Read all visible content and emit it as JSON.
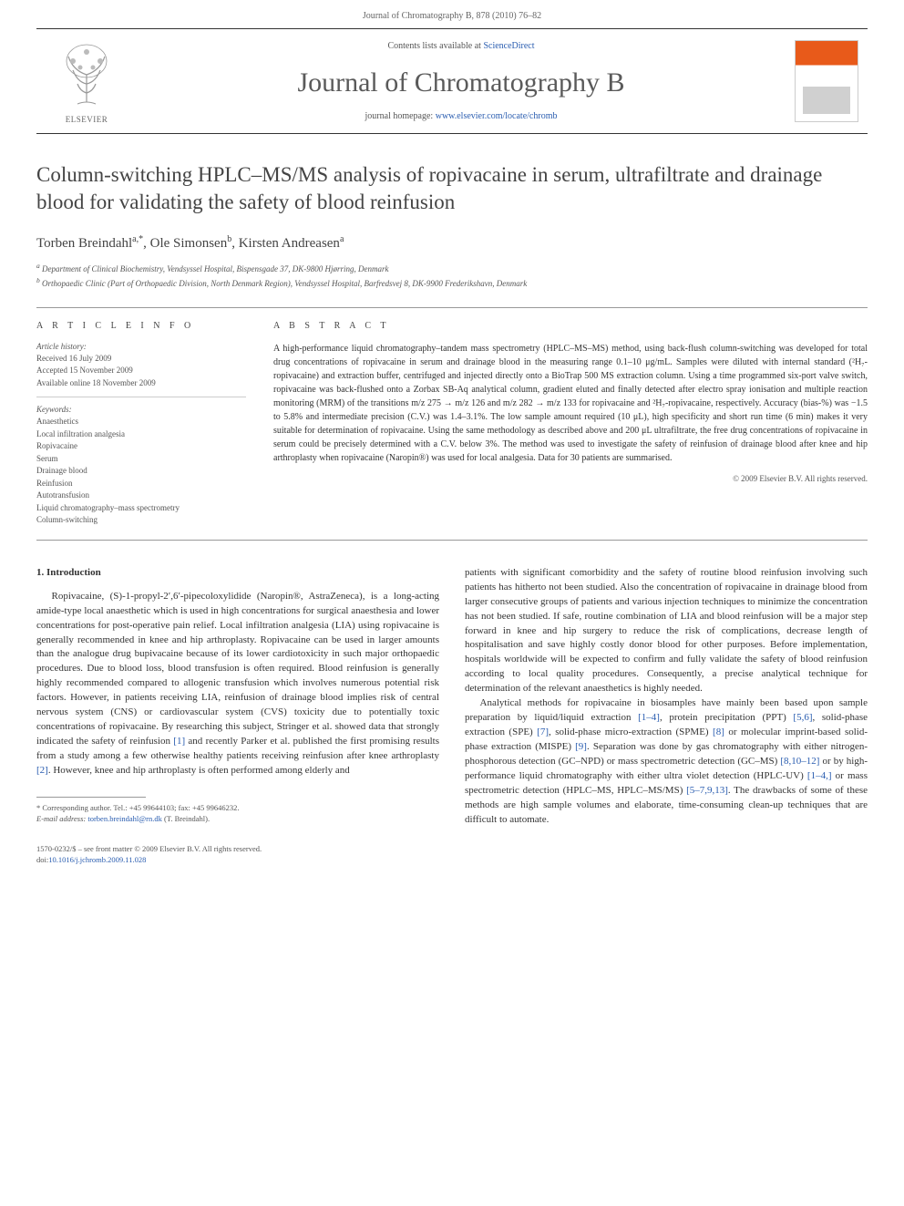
{
  "header": {
    "running_head": "Journal of Chromatography B, 878 (2010) 76–82"
  },
  "masthead": {
    "contents_prefix": "Contents lists available at ",
    "contents_link": "ScienceDirect",
    "journal_name": "Journal of Chromatography B",
    "homepage_prefix": "journal homepage: ",
    "homepage_url": "www.elsevier.com/locate/chromb",
    "publisher": "ELSEVIER"
  },
  "article": {
    "title": "Column-switching HPLC–MS/MS analysis of ropivacaine in serum, ultrafiltrate and drainage blood for validating the safety of blood reinfusion",
    "authors_html": "Torben Breindahl<sup>a,*</sup>, Ole Simonsen<sup>b</sup>, Kirsten Andreasen<sup>a</sup>",
    "affiliations": [
      "a Department of Clinical Biochemistry, Vendsyssel Hospital, Bispensgade 37, DK-9800 Hjørring, Denmark",
      "b Orthopaedic Clinic (Part of Orthopaedic Division, North Denmark Region), Vendsyssel Hospital, Barfredsvej 8, DK-9900 Frederikshavn, Denmark"
    ]
  },
  "info": {
    "heading": "A R T I C L E   I N F O",
    "history_label": "Article history:",
    "history": [
      "Received 16 July 2009",
      "Accepted 15 November 2009",
      "Available online 18 November 2009"
    ],
    "keywords_label": "Keywords:",
    "keywords": [
      "Anaesthetics",
      "Local infiltration analgesia",
      "Ropivacaine",
      "Serum",
      "Drainage blood",
      "Reinfusion",
      "Autotransfusion",
      "Liquid chromatography–mass spectrometry",
      "Column-switching"
    ]
  },
  "abstract": {
    "heading": "A B S T R A C T",
    "text": "A high-performance liquid chromatography–tandem mass spectrometry (HPLC–MS–MS) method, using back-flush column-switching was developed for total drug concentrations of ropivacaine in serum and drainage blood in the measuring range 0.1–10 μg/mL. Samples were diluted with internal standard (²H₇-ropivacaine) and extraction buffer, centrifuged and injected directly onto a BioTrap 500 MS extraction column. Using a time programmed six-port valve switch, ropivacaine was back-flushed onto a Zorbax SB-Aq analytical column, gradient eluted and finally detected after electro spray ionisation and multiple reaction monitoring (MRM) of the transitions m/z 275 → m/z 126 and m/z 282 → m/z 133 for ropivacaine and ²H₇-ropivacaine, respectively. Accuracy (bias-%) was −1.5 to 5.8% and intermediate precision (C.V.) was 1.4–3.1%. The low sample amount required (10 μL), high specificity and short run time (6 min) makes it very suitable for determination of ropivacaine. Using the same methodology as described above and 200 μL ultrafiltrate, the free drug concentrations of ropivacaine in serum could be precisely determined with a C.V. below 3%. The method was used to investigate the safety of reinfusion of drainage blood after knee and hip arthroplasty when ropivacaine (Naropin®) was used for local analgesia. Data for 30 patients are summarised.",
    "copyright": "© 2009 Elsevier B.V. All rights reserved."
  },
  "body": {
    "section_number": "1.",
    "section_title": "Introduction",
    "col1_p1": "Ropivacaine, (S)-1-propyl-2′,6′-pipecoloxylidide (Naropin®, AstraZeneca), is a long-acting amide-type local anaesthetic which is used in high concentrations for surgical anaesthesia and lower concentrations for post-operative pain relief. Local infiltration analgesia (LIA) using ropivacaine is generally recommended in knee and hip arthroplasty. Ropivacaine can be used in larger amounts than the analogue drug bupivacaine because of its lower cardiotoxicity in such major orthopaedic procedures. Due to blood loss, blood transfusion is often required. Blood reinfusion is generally highly recommended compared to allogenic transfusion which involves numerous potential risk factors. However, in patients receiving LIA, reinfusion of drainage blood implies risk of central nervous system (CNS) or cardiovascular system (CVS) toxicity due to potentially toxic concentrations of ropivacaine. By researching this subject, Stringer et al. showed data that strongly indicated the safety of reinfusion ",
    "col1_ref1": "[1]",
    "col1_p1b": " and recently Parker et al. published the first promising results from a study among a few otherwise healthy patients receiving reinfusion after knee arthroplasty ",
    "col1_ref2": "[2]",
    "col1_p1c": ". However, knee and hip arthroplasty is often performed among elderly and",
    "col2_p1": "patients with significant comorbidity and the safety of routine blood reinfusion involving such patients has hitherto not been studied. Also the concentration of ropivacaine in drainage blood from larger consecutive groups of patients and various injection techniques to minimize the concentration has not been studied. If safe, routine combination of LIA and blood reinfusion will be a major step forward in knee and hip surgery to reduce the risk of complications, decrease length of hospitalisation and save highly costly donor blood for other purposes. Before implementation, hospitals worldwide will be expected to confirm and fully validate the safety of blood reinfusion according to local quality procedures. Consequently, a precise analytical technique for determination of the relevant anaesthetics is highly needed.",
    "col2_p2a": "Analytical methods for ropivacaine in biosamples have mainly been based upon sample preparation by liquid/liquid extraction ",
    "col2_r1": "[1–4]",
    "col2_p2b": ", protein precipitation (PPT) ",
    "col2_r2": "[5,6]",
    "col2_p2c": ", solid-phase extraction (SPE) ",
    "col2_r3": "[7]",
    "col2_p2d": ", solid-phase micro-extraction (SPME) ",
    "col2_r4": "[8]",
    "col2_p2e": " or molecular imprint-based solid-phase extraction (MISPE) ",
    "col2_r5": "[9]",
    "col2_p2f": ". Separation was done by gas chromatography with either nitrogen-phosphorous detection (GC–NPD) or mass spectrometric detection (GC–MS) ",
    "col2_r6": "[8,10–12]",
    "col2_p2g": " or by high-performance liquid chromatography with either ultra violet detection (HPLC-UV) ",
    "col2_r7": "[1–4,]",
    "col2_p2h": " or mass spectrometric detection (HPLC–MS, HPLC–MS/MS) ",
    "col2_r8": "[5–7,9,13]",
    "col2_p2i": ". The drawbacks of some of these methods are high sample volumes and elaborate, time-consuming clean-up techniques that are difficult to automate."
  },
  "footnote": {
    "corr": "* Corresponding author. Tel.: +45 99644103; fax: +45 99646232.",
    "email_label": "E-mail address: ",
    "email": "torben.breindahl@rn.dk",
    "email_suffix": " (T. Breindahl)."
  },
  "footer": {
    "line1": "1570-0232/$ – see front matter © 2009 Elsevier B.V. All rights reserved.",
    "doi_label": "doi:",
    "doi": "10.1016/j.jchromb.2009.11.028"
  },
  "colors": {
    "link": "#2a5db0",
    "text": "#333333",
    "muted": "#666666",
    "rule": "#999999",
    "cover_accent": "#e85a1a"
  }
}
